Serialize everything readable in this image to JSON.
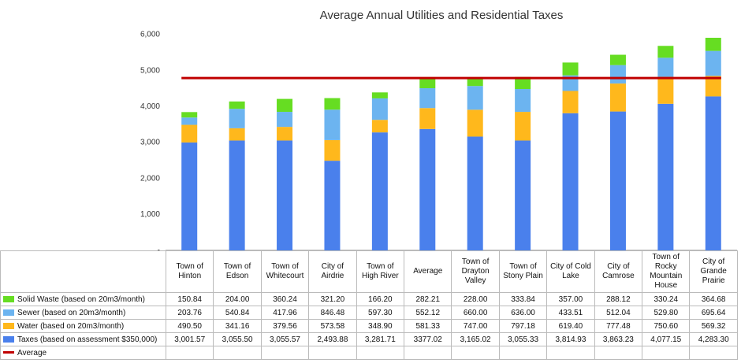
{
  "chart_data": {
    "type": "stacked_bar",
    "title": "Average Annual Utilities and Residential Taxes",
    "categories": [
      "Town of Hinton",
      "Town of Edson",
      "Town of Whitecourt",
      "City of Airdrie",
      "Town of High River",
      "Average",
      "Town of Drayton Valley",
      "Town of Stony Plain",
      "City of Cold Lake",
      "City of Camrose",
      "Town of Rocky Mountain House",
      "City of Grande Prairie"
    ],
    "series": [
      {
        "name": "Solid Waste (based on 20m3/month)",
        "color": "#66dd22",
        "values": [
          150.84,
          204.0,
          360.24,
          321.2,
          166.2,
          282.21,
          228.0,
          333.84,
          357.0,
          288.12,
          330.24,
          364.68
        ],
        "value_labels": [
          "150.84",
          "204.00",
          "360.24",
          "321.20",
          "166.20",
          "282.21",
          "228.00",
          "333.84",
          "357.00",
          "288.12",
          "330.24",
          "364.68"
        ]
      },
      {
        "name": "Sewer (based on 20m3/month)",
        "color": "#6cb4f0",
        "values": [
          203.76,
          540.84,
          417.96,
          846.48,
          597.3,
          552.12,
          660.0,
          636.0,
          433.51,
          512.04,
          529.8,
          695.64
        ],
        "value_labels": [
          "203.76",
          "540.84",
          "417.96",
          "846.48",
          "597.30",
          "552.12",
          "660.00",
          "636.00",
          "433.51",
          "512.04",
          "529.80",
          "695.64"
        ]
      },
      {
        "name": "Water (based on 20m3/month)",
        "color": "#ffb81c",
        "values": [
          490.5,
          341.16,
          379.56,
          573.58,
          348.9,
          581.33,
          747.0,
          797.18,
          619.4,
          777.48,
          750.6,
          569.32
        ],
        "value_labels": [
          "490.50",
          "341.16",
          "379.56",
          "573.58",
          "348.90",
          "581.33",
          "747.00",
          "797.18",
          "619.40",
          "777.48",
          "750.60",
          "569.32"
        ]
      },
      {
        "name": "Taxes (based on assessment $350,000)",
        "color": "#4a80ec",
        "values": [
          3001.57,
          3055.5,
          3055.57,
          2493.88,
          3281.71,
          3377.02,
          3165.02,
          3055.33,
          3814.93,
          3863.23,
          4077.15,
          4283.3
        ],
        "value_labels": [
          "3,001.57",
          "3,055.50",
          "3,055.57",
          "2,493.88",
          "3,281.71",
          "3377.02",
          "3,165.02",
          "3,055.33",
          "3,814.93",
          "3,863.23",
          "4,077.15",
          "4,283.30"
        ]
      },
      {
        "name": "Average",
        "color": "#c00000",
        "type": "line",
        "value": 4793
      }
    ],
    "ylim": [
      0,
      6000
    ],
    "yticks": [
      {
        "value": 0,
        "label": "-"
      },
      {
        "value": 1000,
        "label": "1,000"
      },
      {
        "value": 2000,
        "label": "2,000"
      },
      {
        "value": 3000,
        "label": "3,000"
      },
      {
        "value": 4000,
        "label": "4,000"
      },
      {
        "value": 5000,
        "label": "5,000"
      },
      {
        "value": 6000,
        "label": "6,000"
      }
    ],
    "grid": false
  }
}
